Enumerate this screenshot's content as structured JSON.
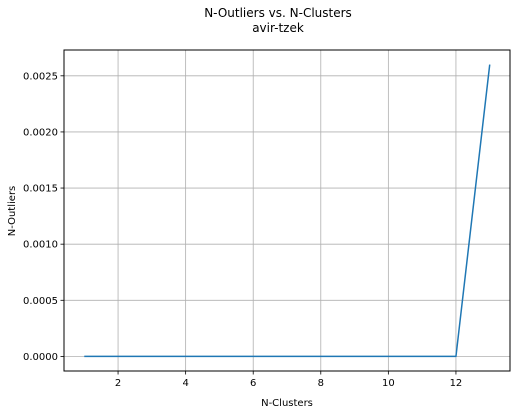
{
  "chart_data": {
    "type": "line",
    "title": "N-Outliers vs. N-Clusters",
    "subtitle": "avir-tzek",
    "xlabel": "N-Clusters",
    "ylabel": "N-Outliers",
    "xlim": [
      0.4,
      13.6
    ],
    "ylim": [
      -0.00013,
      0.00273
    ],
    "xticks": [
      2,
      4,
      6,
      8,
      10,
      12
    ],
    "yticks": [
      0.0,
      0.0005,
      0.001,
      0.0015,
      0.002,
      0.0025
    ],
    "ytick_labels": [
      "0.0000",
      "0.0005",
      "0.0010",
      "0.0015",
      "0.0020",
      "0.0025"
    ],
    "grid": true,
    "series": [
      {
        "color": "#1f77b4",
        "x": [
          1,
          2,
          3,
          4,
          5,
          6,
          7,
          8,
          9,
          10,
          11,
          12,
          13
        ],
        "values": [
          0,
          0,
          0,
          0,
          0,
          0,
          0,
          0,
          0,
          0,
          0,
          0,
          0.0026
        ]
      }
    ]
  }
}
